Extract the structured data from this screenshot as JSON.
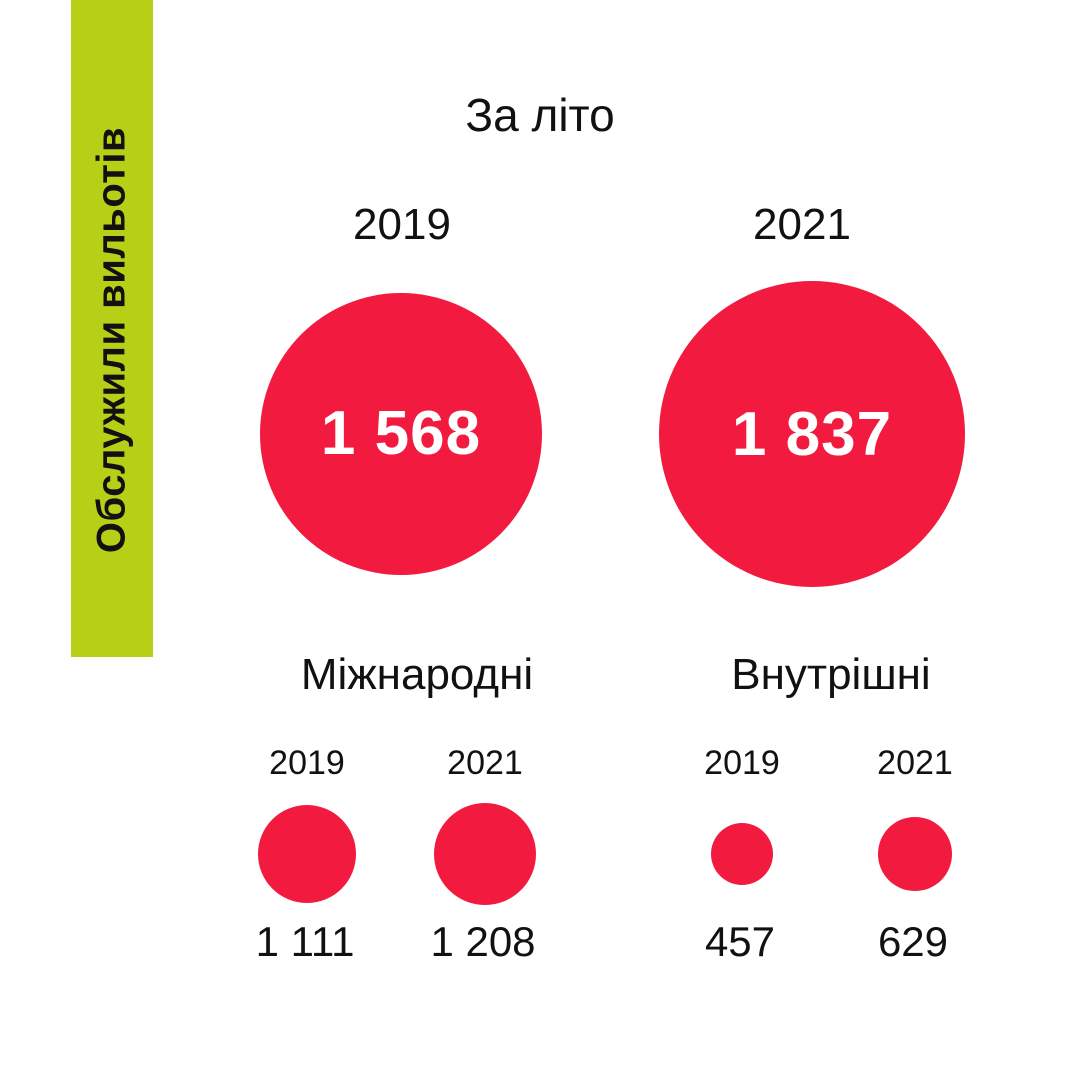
{
  "side_label": "Обслужили вильотів",
  "chart_data": {
    "type": "bubble",
    "title": "За літо",
    "accent_color": "#f21b3f",
    "bar_color": "#b8cf18",
    "totals": [
      {
        "year": "2019",
        "value": 1568,
        "label": "1 568"
      },
      {
        "year": "2021",
        "value": 1837,
        "label": "1 837"
      }
    ],
    "groups": [
      {
        "name": "Міжнародні",
        "items": [
          {
            "year": "2019",
            "value": 1111,
            "label": "1 111"
          },
          {
            "year": "2021",
            "value": 1208,
            "label": "1 208"
          }
        ]
      },
      {
        "name": "Внутрішні",
        "items": [
          {
            "year": "2019",
            "value": 457,
            "label": "457"
          },
          {
            "year": "2021",
            "value": 629,
            "label": "629"
          }
        ]
      }
    ]
  }
}
